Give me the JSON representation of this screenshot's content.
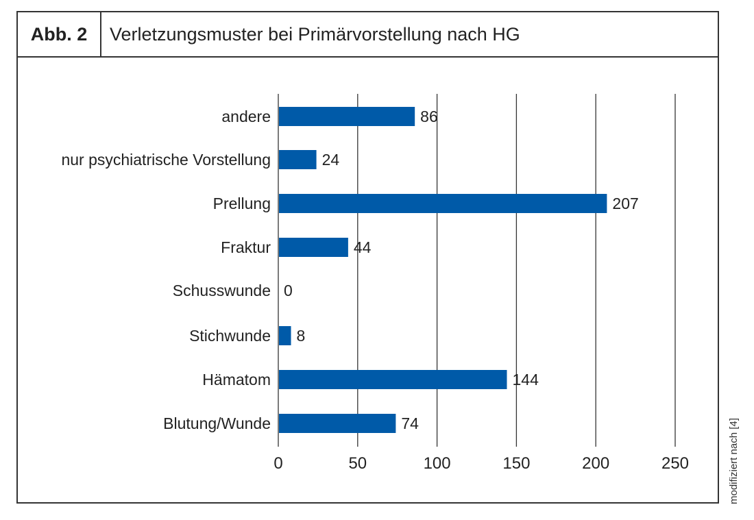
{
  "figure": {
    "label": "Abb. 2",
    "title": "Verletzungsmuster bei Primärvorstellung nach HG",
    "source_note": "modifiziert nach [4]"
  },
  "chart_data": {
    "type": "bar",
    "orientation": "horizontal",
    "title": "Verletzungsmuster bei Primärvorstellung nach HG",
    "categories": [
      "andere",
      "nur psychiatrische Vorstellung",
      "Prellung",
      "Fraktur",
      "Schusswunde",
      "Stichwunde",
      "Hämatom",
      "Blutung/Wunde"
    ],
    "values": [
      86,
      24,
      207,
      44,
      0,
      8,
      144,
      74
    ],
    "xlim": [
      0,
      250
    ],
    "xticks": [
      0,
      50,
      100,
      150,
      200,
      250
    ],
    "xlabel": "",
    "ylabel": "",
    "grid": true,
    "bar_color": "#005aa8"
  }
}
